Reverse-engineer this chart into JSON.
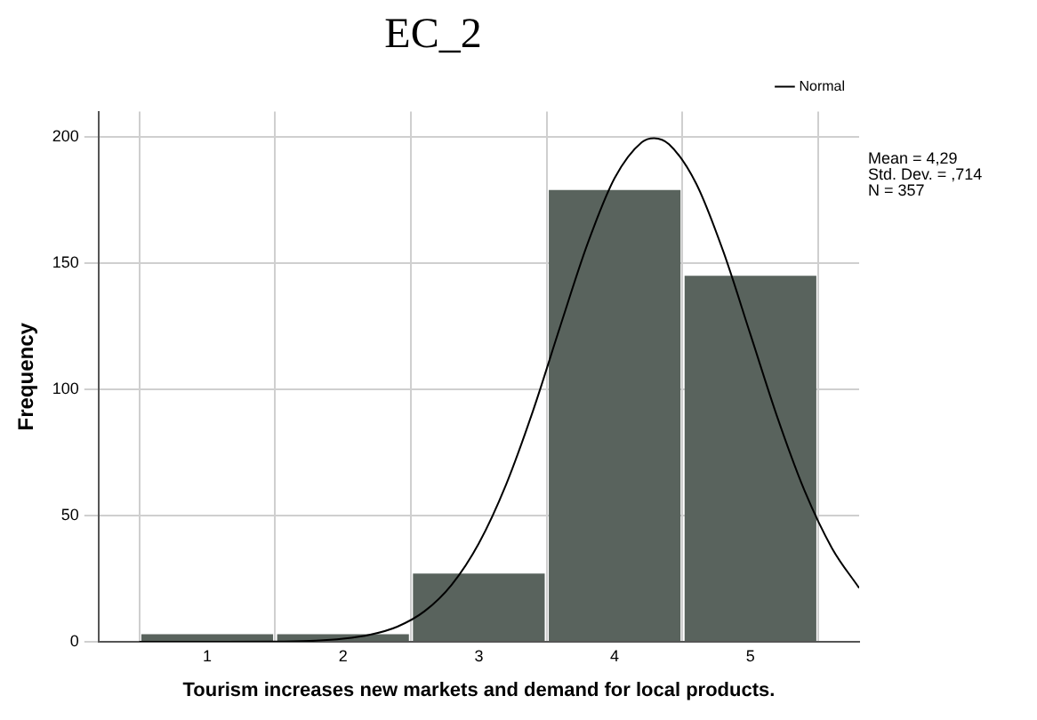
{
  "chart_data": {
    "type": "histogram",
    "title": "EC_2",
    "xlabel": "Tourism increases new markets and demand for local products.",
    "ylabel": "Frequency",
    "bins": [
      0.5,
      1.5,
      2.5,
      3.5,
      4.5,
      5.5
    ],
    "values": [
      3,
      3,
      27,
      179,
      145
    ],
    "color": "#59635d",
    "series": [
      {
        "name": "Normal",
        "type": "line",
        "color": "#000000",
        "x": [
          0.5,
          1.0,
          1.5,
          1.8,
          2.0,
          2.2,
          2.4,
          2.6,
          2.8,
          3.0,
          3.2,
          3.4,
          3.6,
          3.8,
          4.0,
          4.2,
          4.29,
          4.4,
          4.6,
          4.8,
          5.0,
          5.2,
          5.4,
          5.6,
          5.8
        ],
        "values": [
          0,
          0,
          0.1,
          0.4,
          1.2,
          2.8,
          6.0,
          12.1,
          22.6,
          39.0,
          62.2,
          91.7,
          125.1,
          157.6,
          183.7,
          197.9,
          199.5,
          197.1,
          181.5,
          154.6,
          121.7,
          88.6,
          59.6,
          37.1,
          21.3
        ]
      }
    ],
    "xlim": [
      0.2,
      5.8
    ],
    "xticks": [
      1,
      2,
      3,
      4,
      5
    ],
    "ylim": [
      0,
      210
    ],
    "yticks": [
      0,
      50,
      100,
      150,
      200
    ],
    "grid": true,
    "legend": "top right",
    "marker": "none",
    "annotations": [
      "Mean = 4,29",
      "Std. Dev. = ,714",
      "N = 357"
    ]
  }
}
